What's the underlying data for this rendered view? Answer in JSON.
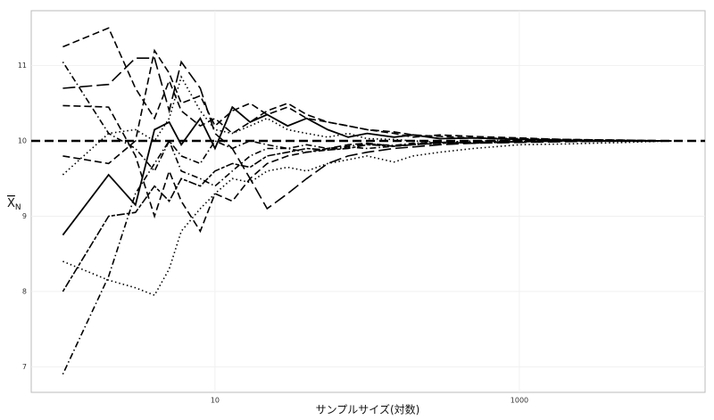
{
  "chart_data": {
    "type": "line",
    "xlabel": "サンプルサイズ(対数)",
    "ylabel": {
      "main": "X",
      "sub": "N"
    },
    "xlog": true,
    "xlim": [
      0.62,
      16600
    ],
    "xticks": [
      10,
      1000
    ],
    "ylim": [
      6.66,
      11.73
    ],
    "yticks": [
      7,
      8,
      9,
      10,
      11
    ],
    "grid": true,
    "hline": 10,
    "x": [
      1,
      2,
      3,
      4,
      5,
      6,
      8,
      10,
      13,
      17,
      22,
      30,
      40,
      55,
      75,
      100,
      150,
      200,
      300,
      500,
      1000,
      2000,
      5000,
      10000
    ],
    "series": [
      {
        "color": "#000000",
        "dash": "solid",
        "values": [
          8.75,
          9.55,
          9.15,
          10.15,
          10.25,
          9.95,
          10.3,
          9.9,
          10.45,
          10.25,
          10.35,
          10.2,
          10.3,
          10.15,
          10.05,
          10.1,
          10.05,
          10.08,
          10.03,
          10.04,
          10.02,
          10.01,
          10.0,
          10.0
        ]
      },
      {
        "color": "#000000",
        "dash": "dashed",
        "values": [
          11.25,
          11.5,
          10.7,
          10.3,
          10.8,
          10.4,
          10.2,
          10.3,
          10.1,
          10.25,
          10.4,
          10.5,
          10.35,
          10.25,
          10.2,
          10.15,
          10.1,
          10.05,
          10.08,
          10.06,
          10.04,
          10.02,
          10.01,
          10.0
        ]
      },
      {
        "color": "#000000",
        "dash": "longdash",
        "values": [
          10.7,
          10.75,
          11.1,
          11.1,
          10.4,
          11.05,
          10.7,
          10.1,
          9.9,
          9.5,
          9.1,
          9.3,
          9.5,
          9.7,
          9.8,
          9.85,
          9.9,
          9.92,
          9.95,
          9.97,
          9.98,
          9.99,
          10.0,
          10.0
        ]
      },
      {
        "color": "#000000",
        "dash": "dashed",
        "values": [
          10.47,
          10.45,
          9.8,
          9.0,
          9.6,
          9.2,
          8.8,
          9.3,
          9.2,
          9.5,
          9.7,
          9.8,
          9.85,
          9.9,
          9.95,
          9.97,
          9.93,
          9.96,
          9.98,
          9.97,
          9.99,
          10.0,
          10.0,
          10.0
        ]
      },
      {
        "color": "#000000",
        "dash": "dotted",
        "values": [
          9.55,
          10.1,
          10.15,
          10.0,
          10.3,
          10.85,
          10.4,
          10.15,
          10.1,
          10.2,
          10.3,
          10.15,
          10.1,
          10.05,
          10.1,
          10.03,
          10.02,
          10.0,
          9.98,
          10.0,
          10.01,
          10.0,
          10.0,
          10.0
        ]
      },
      {
        "color": "#000000",
        "dash": "dotdash",
        "values": [
          11.05,
          10.1,
          9.9,
          9.6,
          10.0,
          9.8,
          9.7,
          10.0,
          9.9,
          10.0,
          9.95,
          9.9,
          9.85,
          9.88,
          9.92,
          9.9,
          9.93,
          9.95,
          9.97,
          9.98,
          9.99,
          10.0,
          10.0,
          10.0
        ]
      },
      {
        "color": "#000000",
        "dash": "dotted",
        "values": [
          8.4,
          8.15,
          8.05,
          7.95,
          8.3,
          8.8,
          9.1,
          9.3,
          9.5,
          9.45,
          9.6,
          9.65,
          9.6,
          9.7,
          9.75,
          9.8,
          9.72,
          9.8,
          9.85,
          9.9,
          9.95,
          9.96,
          9.98,
          10.0
        ]
      },
      {
        "color": "#000000",
        "dash": "twodash",
        "values": [
          8.0,
          9.0,
          9.05,
          9.4,
          9.2,
          9.5,
          9.4,
          9.6,
          9.7,
          9.65,
          9.8,
          9.85,
          9.9,
          9.88,
          9.9,
          9.95,
          9.93,
          9.95,
          9.97,
          9.98,
          9.99,
          10.0,
          10.0,
          10.0
        ]
      },
      {
        "color": "#000000",
        "dash": "dotdash",
        "values": [
          6.9,
          8.2,
          9.3,
          9.7,
          10.0,
          9.6,
          9.5,
          9.4,
          9.6,
          9.8,
          9.9,
          9.9,
          9.95,
          9.9,
          9.93,
          9.96,
          9.94,
          9.97,
          9.98,
          9.99,
          10.0,
          10.0,
          10.0,
          10.0
        ]
      },
      {
        "color": "#000000",
        "dash": "dashed",
        "values": [
          9.8,
          9.7,
          10.0,
          11.2,
          10.9,
          10.5,
          10.6,
          10.2,
          10.4,
          10.5,
          10.35,
          10.45,
          10.3,
          10.25,
          10.2,
          10.15,
          10.12,
          10.08,
          10.06,
          10.04,
          10.03,
          10.02,
          10.01,
          10.0
        ]
      }
    ]
  }
}
